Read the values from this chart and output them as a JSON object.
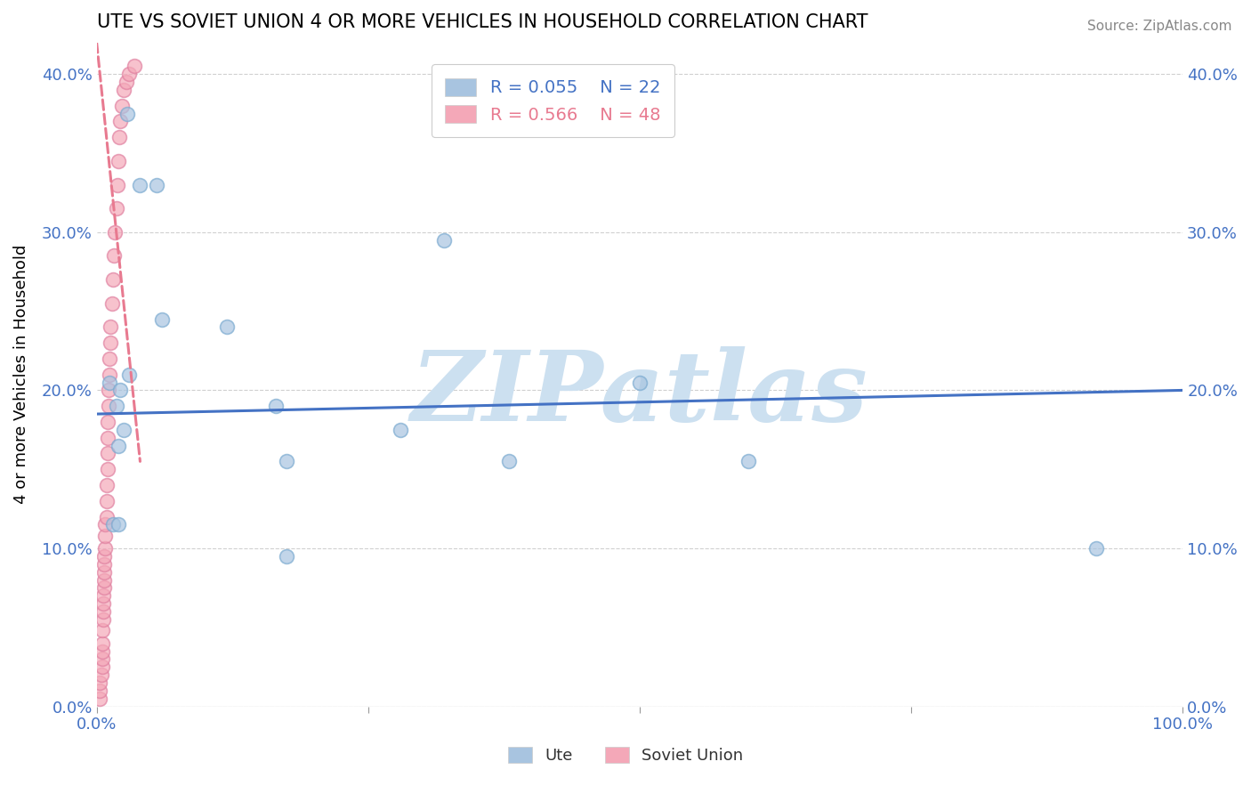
{
  "title": "UTE VS SOVIET UNION 4 OR MORE VEHICLES IN HOUSEHOLD CORRELATION CHART",
  "source_text": "Source: ZipAtlas.com",
  "ylabel": "4 or more Vehicles in Household",
  "xlim": [
    0.0,
    1.0
  ],
  "ylim": [
    0.0,
    0.42
  ],
  "ytick_positions": [
    0.0,
    0.1,
    0.2,
    0.3,
    0.4
  ],
  "ytick_labels": [
    "0.0%",
    "10.0%",
    "20.0%",
    "30.0%",
    "40.0%"
  ],
  "ute_x": [
    0.028,
    0.04,
    0.055,
    0.03,
    0.012,
    0.022,
    0.018,
    0.025,
    0.02,
    0.06,
    0.12,
    0.165,
    0.175,
    0.28,
    0.38,
    0.5,
    0.6,
    0.92,
    0.015,
    0.02,
    0.175,
    0.32
  ],
  "ute_y": [
    0.375,
    0.33,
    0.33,
    0.21,
    0.205,
    0.2,
    0.19,
    0.175,
    0.165,
    0.245,
    0.24,
    0.19,
    0.155,
    0.175,
    0.155,
    0.205,
    0.155,
    0.1,
    0.115,
    0.115,
    0.095,
    0.295
  ],
  "soviet_x": [
    0.003,
    0.003,
    0.003,
    0.004,
    0.005,
    0.005,
    0.005,
    0.005,
    0.005,
    0.006,
    0.006,
    0.006,
    0.006,
    0.007,
    0.007,
    0.007,
    0.007,
    0.007,
    0.008,
    0.008,
    0.008,
    0.009,
    0.009,
    0.009,
    0.01,
    0.01,
    0.01,
    0.01,
    0.011,
    0.011,
    0.012,
    0.012,
    0.013,
    0.013,
    0.014,
    0.015,
    0.016,
    0.017,
    0.018,
    0.019,
    0.02,
    0.021,
    0.022,
    0.023,
    0.025,
    0.027,
    0.03,
    0.035
  ],
  "soviet_y": [
    0.005,
    0.01,
    0.015,
    0.02,
    0.025,
    0.03,
    0.035,
    0.04,
    0.048,
    0.055,
    0.06,
    0.065,
    0.07,
    0.075,
    0.08,
    0.085,
    0.09,
    0.095,
    0.1,
    0.108,
    0.115,
    0.12,
    0.13,
    0.14,
    0.15,
    0.16,
    0.17,
    0.18,
    0.19,
    0.2,
    0.21,
    0.22,
    0.23,
    0.24,
    0.255,
    0.27,
    0.285,
    0.3,
    0.315,
    0.33,
    0.345,
    0.36,
    0.37,
    0.38,
    0.39,
    0.395,
    0.4,
    0.405
  ],
  "ute_line_start_y": 0.185,
  "ute_line_end_y": 0.2,
  "soviet_line_x0": 0.0,
  "soviet_line_y0": 0.42,
  "soviet_line_x1": 0.04,
  "soviet_line_y1": 0.155,
  "ute_R": 0.055,
  "ute_N": 22,
  "soviet_R": 0.566,
  "soviet_N": 48,
  "ute_color": "#a8c4e0",
  "ute_edge_color": "#7aaad0",
  "soviet_color": "#f4a8b8",
  "soviet_edge_color": "#e080a0",
  "ute_line_color": "#4472c4",
  "soviet_line_color": "#e87a90",
  "background_color": "#ffffff",
  "watermark_text": "ZIPatlas",
  "watermark_color": "#cce0f0",
  "grid_color": "#d0d0d0"
}
